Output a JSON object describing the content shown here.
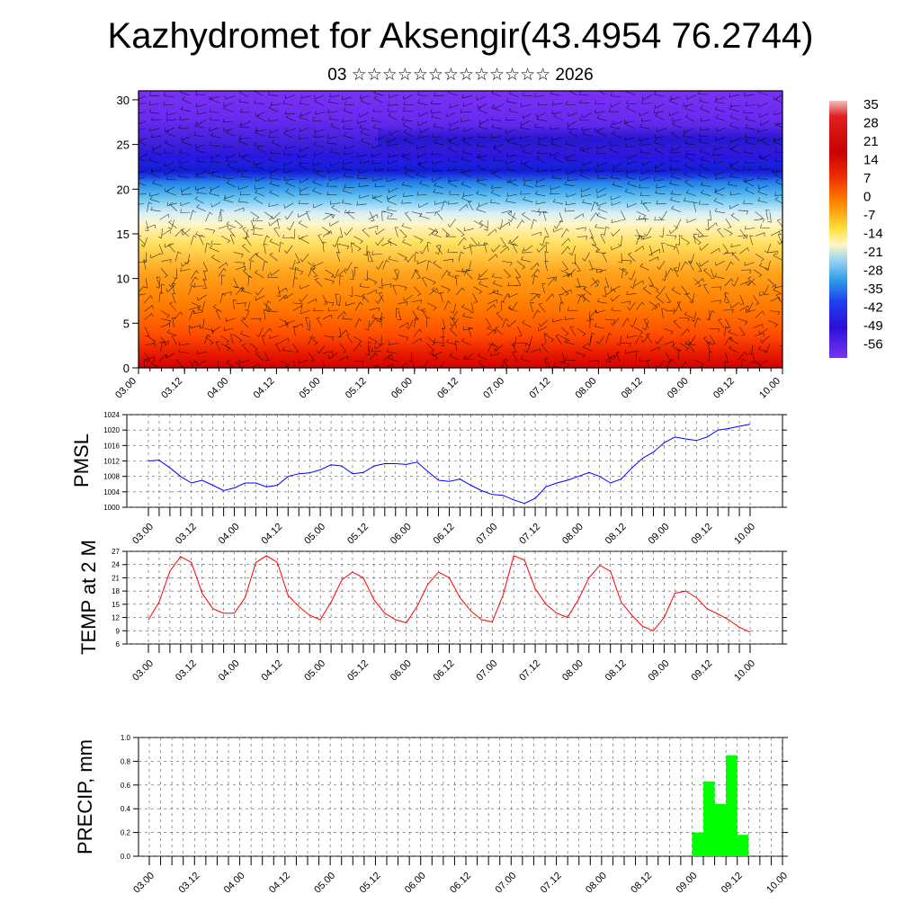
{
  "header": {
    "title": "Kazhydromet for Aksengir(43.4954 76.2744)",
    "subtitle": "03 ☆☆☆☆☆☆☆☆☆☆☆☆☆ 2026"
  },
  "colors": {
    "pmsl_line": "#0000ff",
    "temp_line": "#ff0000",
    "precip_fill": "#00ff00",
    "barb": "#000000"
  },
  "chart_data": [
    {
      "id": "temperature_cross_section",
      "type": "heatmap",
      "title": "",
      "xlabel": "",
      "ylabel": "",
      "x_ticks": [
        "03.00",
        "03.12",
        "04.00",
        "04.12",
        "05.00",
        "05.12",
        "06.00",
        "06.12",
        "07.00",
        "07.12",
        "08.00",
        "08.12",
        "09.00",
        "09.12",
        "10.00"
      ],
      "y_ticks": [
        0,
        5,
        10,
        15,
        20,
        25,
        30
      ],
      "ylim": [
        0,
        31
      ],
      "colorbar_labels": [
        "35",
        "28",
        "21",
        "14",
        "7",
        "0",
        "-7",
        "-14",
        "-21",
        "-28",
        "-35",
        "-42",
        "-49",
        "-56"
      ],
      "colorbar_range": [
        -63,
        39
      ],
      "overlay": "wind barbs"
    },
    {
      "id": "pmsl",
      "type": "line",
      "ylabel": "PMSL",
      "ylim": [
        1000,
        1024
      ],
      "y_ticks": [
        1000,
        1004,
        1008,
        1012,
        1016,
        1020,
        1024
      ],
      "x_ticks": [
        "03.00",
        "03.12",
        "04.00",
        "04.12",
        "05.00",
        "05.12",
        "06.00",
        "06.12",
        "07.00",
        "07.12",
        "08.00",
        "08.12",
        "09.00",
        "09.12",
        "10.00"
      ],
      "x": [
        0,
        3,
        6,
        9,
        12,
        15,
        18,
        21,
        24,
        27,
        30,
        33,
        36,
        39,
        42,
        45,
        48,
        51,
        54,
        57,
        60,
        63,
        66,
        69,
        72,
        75,
        78,
        81,
        84,
        87,
        90,
        93,
        96,
        99,
        102,
        105,
        108,
        111,
        114,
        117,
        120,
        123,
        126,
        129,
        132,
        135,
        138,
        141,
        144,
        147,
        150,
        153,
        156,
        159,
        162,
        165,
        168
      ],
      "values": [
        1012.0,
        1012.2,
        1010.2,
        1008.0,
        1006.3,
        1007.0,
        1005.7,
        1004.3,
        1005.0,
        1006.3,
        1006.3,
        1005.3,
        1005.7,
        1008.0,
        1008.7,
        1008.9,
        1009.7,
        1011.0,
        1010.7,
        1008.7,
        1009.0,
        1010.7,
        1011.3,
        1011.3,
        1011.1,
        1011.7,
        1009.3,
        1007.0,
        1006.7,
        1007.3,
        1005.7,
        1004.3,
        1003.3,
        1003.1,
        1001.9,
        1001.0,
        1002.3,
        1005.3,
        1006.3,
        1007.0,
        1008.0,
        1009.0,
        1008.0,
        1006.3,
        1007.3,
        1010.2,
        1012.7,
        1014.3,
        1016.7,
        1018.2,
        1017.7,
        1017.3,
        1018.2,
        1020.0,
        1020.4,
        1021.0,
        1021.5
      ]
    },
    {
      "id": "temp2m",
      "type": "line",
      "ylabel": "TEMP at 2 M",
      "ylim": [
        6,
        27
      ],
      "y_ticks": [
        6,
        9,
        12,
        15,
        18,
        21,
        24,
        27
      ],
      "x_ticks": [
        "03.00",
        "03.12",
        "04.00",
        "04.12",
        "05.00",
        "05.12",
        "06.00",
        "06.12",
        "07.00",
        "07.12",
        "08.00",
        "08.12",
        "09.00",
        "09.12",
        "10.00"
      ],
      "x": [
        0,
        3,
        6,
        9,
        12,
        15,
        18,
        21,
        24,
        27,
        30,
        33,
        36,
        39,
        42,
        45,
        48,
        51,
        54,
        57,
        60,
        63,
        66,
        69,
        72,
        75,
        78,
        81,
        84,
        87,
        90,
        93,
        96,
        99,
        102,
        105,
        108,
        111,
        114,
        117,
        120,
        123,
        126,
        129,
        132,
        135,
        138,
        141,
        144,
        147,
        150,
        153,
        156,
        159,
        162,
        165,
        168
      ],
      "values": [
        11.5,
        15.5,
        22.5,
        25.8,
        24.5,
        17.5,
        14.0,
        13.0,
        13.0,
        16.5,
        24.5,
        26.0,
        24.5,
        17.0,
        14.5,
        12.5,
        11.5,
        15.5,
        20.5,
        22.3,
        21.0,
        16.0,
        13.0,
        11.5,
        10.8,
        14.5,
        19.5,
        22.3,
        21.0,
        16.5,
        13.5,
        11.5,
        11.0,
        17.0,
        26.0,
        25.0,
        18.5,
        15.0,
        13.0,
        12.0,
        16.0,
        21.0,
        23.8,
        22.5,
        15.5,
        12.5,
        10.0,
        9.0,
        12.0,
        17.5,
        18.0,
        16.5,
        14.0,
        12.8,
        11.5,
        9.8,
        8.7
      ]
    },
    {
      "id": "precip",
      "type": "bar",
      "ylabel": "PRECIP, mm",
      "ylim": [
        0,
        1.0
      ],
      "y_ticks": [
        "0.0",
        "0.2",
        "0.4",
        "0.6",
        "0.8",
        "1.0"
      ],
      "x_ticks": [
        "03.00",
        "03.12",
        "04.00",
        "04.12",
        "05.00",
        "05.12",
        "06.00",
        "06.12",
        "07.00",
        "07.12",
        "08.00",
        "08.12",
        "09.00",
        "09.12",
        "10.00"
      ],
      "bars": [
        {
          "start": 144,
          "end": 147,
          "value": 0.2
        },
        {
          "start": 147,
          "end": 150,
          "value": 0.63
        },
        {
          "start": 150,
          "end": 153,
          "value": 0.44
        },
        {
          "start": 153,
          "end": 156,
          "value": 0.85
        },
        {
          "start": 156,
          "end": 159,
          "value": 0.18
        }
      ]
    }
  ]
}
